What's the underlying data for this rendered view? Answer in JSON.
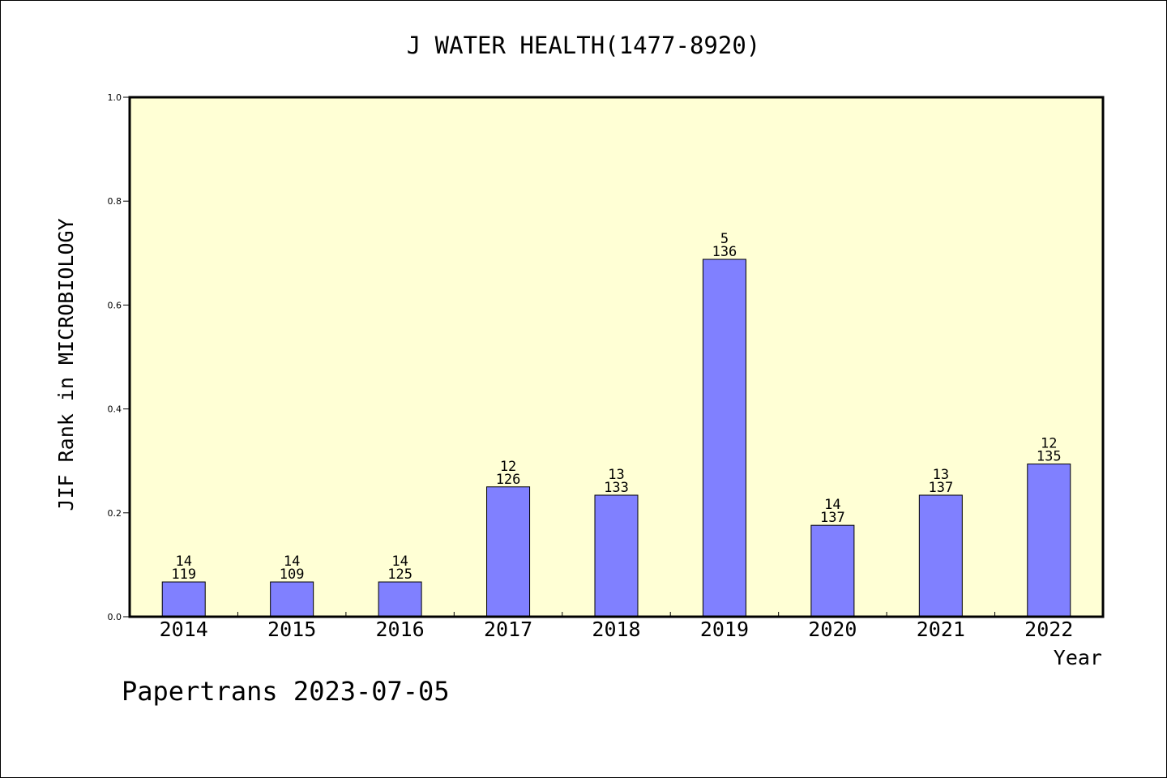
{
  "chart_data": {
    "type": "bar",
    "title": "J WATER HEALTH(1477-8920)",
    "xlabel": "Year",
    "ylabel": "JIF Rank in MICROBIOLOGY",
    "ylim": [
      0,
      1.0
    ],
    "yticks": [
      "0.0",
      "0.2",
      "0.4",
      "0.6",
      "0.8",
      "1.0"
    ],
    "grid": false,
    "categories": [
      "2014",
      "2015",
      "2016",
      "2017",
      "2018",
      "2019",
      "2020",
      "2021",
      "2022"
    ],
    "values": [
      0.067,
      0.067,
      0.067,
      0.25,
      0.234,
      0.688,
      0.176,
      0.234,
      0.294
    ],
    "rank_labels": [
      "14",
      "14",
      "14",
      "12",
      "13",
      "5",
      "14",
      "13",
      "12"
    ],
    "total_labels": [
      "119",
      "109",
      "125",
      "126",
      "133",
      "136",
      "137",
      "137",
      "135"
    ],
    "colors": {
      "plot_background": "#ffffd5",
      "bar_fill": "#8080ff",
      "bar_stroke": "#000000"
    }
  },
  "footer": {
    "source": "Papertrans 2023-07-05"
  }
}
